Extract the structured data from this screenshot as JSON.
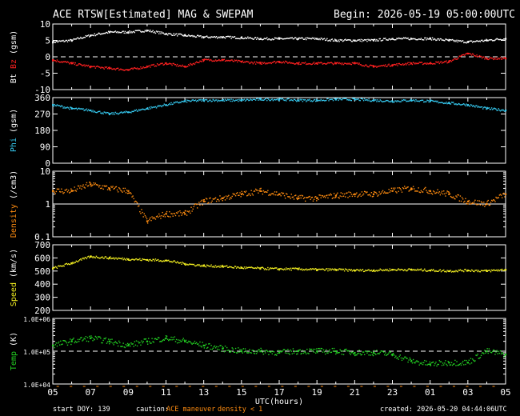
{
  "header": {
    "title": "ACE RTSW[Estimated] MAG & SWEPAM",
    "begin": "Begin: 2026-05-19 05:00:00UTC"
  },
  "footer": {
    "start_doy": "start DOY: 139",
    "caution": "caution:",
    "maneuver": "ACE maneuver",
    "density": "density < 1",
    "created": "created: 2026-05-20 04:44:06UTC"
  },
  "colors": {
    "bt": "#ffffff",
    "bz": "#ff2020",
    "phi": "#35c8ee",
    "density": "#ff8c10",
    "speed": "#f2ee20",
    "temp": "#22d022",
    "frame": "#ffffff",
    "maneuver": "#ff8c10"
  },
  "chart_data": [
    {
      "type": "scatter",
      "panel": "bt-bz",
      "ylabel_parts": [
        "Bt",
        "Bz",
        "(gsm)"
      ],
      "ylim": [
        -10,
        10
      ],
      "yticks": [
        10,
        5,
        0,
        -5,
        -10
      ],
      "ref_line": 0,
      "series": [
        {
          "name": "Bt",
          "color": "#ffffff",
          "x": [
            0,
            1,
            2,
            3,
            4,
            5,
            6,
            7,
            8,
            9,
            10,
            11,
            12,
            13,
            14,
            15,
            16,
            17,
            18,
            19,
            20,
            21,
            22,
            23,
            24
          ],
          "y": [
            4.5,
            5,
            6.5,
            7.5,
            7.5,
            8,
            7,
            6.5,
            6,
            6,
            5.8,
            5.5,
            5.5,
            5.5,
            5.5,
            5,
            5,
            5,
            5.5,
            5.5,
            5.5,
            5,
            4.5,
            5,
            5.5
          ]
        },
        {
          "name": "Bz",
          "color": "#ff2020",
          "x": [
            0,
            1,
            2,
            3,
            4,
            5,
            6,
            7,
            8,
            9,
            10,
            11,
            12,
            13,
            14,
            15,
            16,
            17,
            18,
            19,
            20,
            21,
            22,
            23,
            24
          ],
          "y": [
            -1,
            -2,
            -3,
            -3.5,
            -4,
            -3,
            -2,
            -3,
            -1,
            -1,
            -1.5,
            -2,
            -1.5,
            -2,
            -2,
            -2,
            -2,
            -3,
            -2.5,
            -2,
            -2,
            -1.5,
            1,
            -0.5,
            -0.5
          ]
        }
      ]
    },
    {
      "type": "scatter",
      "panel": "phi",
      "ylabel_parts": [
        "Phi",
        "(gsm)"
      ],
      "ylim": [
        0,
        360
      ],
      "yticks": [
        360,
        270,
        180,
        90,
        0
      ],
      "series": [
        {
          "name": "Phi",
          "color": "#35c8ee",
          "x": [
            0,
            1,
            2,
            3,
            4,
            5,
            6,
            7,
            8,
            9,
            10,
            11,
            12,
            13,
            14,
            15,
            16,
            17,
            18,
            19,
            20,
            21,
            22,
            23,
            24
          ],
          "y": [
            320,
            300,
            290,
            270,
            280,
            300,
            320,
            340,
            345,
            345,
            345,
            350,
            350,
            345,
            345,
            350,
            350,
            345,
            340,
            345,
            340,
            330,
            320,
            300,
            290
          ]
        }
      ]
    },
    {
      "type": "scatter",
      "panel": "density",
      "ylabel_parts": [
        "Density",
        "(/cm3)"
      ],
      "ylim": [
        0.1,
        10
      ],
      "yscale": "log",
      "yticks": [
        10.0,
        1.0,
        0.1
      ],
      "ref_line": 1.0,
      "series": [
        {
          "name": "Density",
          "color": "#ff8c10",
          "x": [
            0,
            1,
            2,
            3,
            4,
            5,
            6,
            7,
            8,
            9,
            10,
            11,
            12,
            13,
            14,
            15,
            16,
            17,
            18,
            19,
            20,
            21,
            22,
            23,
            24
          ],
          "y": [
            2.5,
            2.5,
            4,
            3,
            2.5,
            0.3,
            0.5,
            0.5,
            1.2,
            1.5,
            2,
            2.5,
            2,
            1.5,
            1.5,
            1.8,
            2,
            2,
            2.5,
            3,
            2.5,
            2,
            1.2,
            1,
            2
          ]
        }
      ]
    },
    {
      "type": "scatter",
      "panel": "speed",
      "ylabel_parts": [
        "Speed",
        "(km/s)"
      ],
      "ylim": [
        200,
        700
      ],
      "yticks": [
        700,
        600,
        500,
        400,
        300,
        200
      ],
      "series": [
        {
          "name": "Speed",
          "color": "#f2ee20",
          "x": [
            0,
            1,
            2,
            3,
            4,
            5,
            6,
            7,
            8,
            9,
            10,
            11,
            12,
            13,
            14,
            15,
            16,
            17,
            18,
            19,
            20,
            21,
            22,
            23,
            24
          ],
          "y": [
            520,
            560,
            610,
            600,
            590,
            585,
            580,
            555,
            540,
            535,
            525,
            520,
            515,
            515,
            510,
            510,
            505,
            505,
            510,
            510,
            505,
            500,
            505,
            500,
            510
          ]
        }
      ]
    },
    {
      "type": "scatter",
      "panel": "temp",
      "ylabel_parts": [
        "Temp",
        "(K)"
      ],
      "ylim": [
        10000,
        1000000
      ],
      "yscale": "log",
      "ytick_labels": [
        "1.0E+06",
        "1.0E+05",
        "1.0E+04"
      ],
      "ref_line": 100000,
      "series": [
        {
          "name": "Temp",
          "color": "#22d022",
          "x": [
            0,
            1,
            2,
            3,
            4,
            5,
            6,
            7,
            8,
            9,
            10,
            11,
            12,
            13,
            14,
            15,
            16,
            17,
            18,
            19,
            20,
            21,
            22,
            23,
            24
          ],
          "y": [
            150000,
            200000,
            250000,
            200000,
            150000,
            200000,
            250000,
            200000,
            150000,
            120000,
            100000,
            100000,
            90000,
            100000,
            100000,
            100000,
            90000,
            90000,
            80000,
            50000,
            40000,
            45000,
            45000,
            100000,
            80000
          ]
        }
      ]
    }
  ],
  "x_axis": {
    "tick_labels": [
      "05",
      "07",
      "09",
      "11",
      "13",
      "15",
      "17",
      "19",
      "21",
      "23",
      "01",
      "03",
      "05"
    ],
    "xlabel": "UTC(hours)",
    "xlim": [
      0,
      24
    ]
  }
}
